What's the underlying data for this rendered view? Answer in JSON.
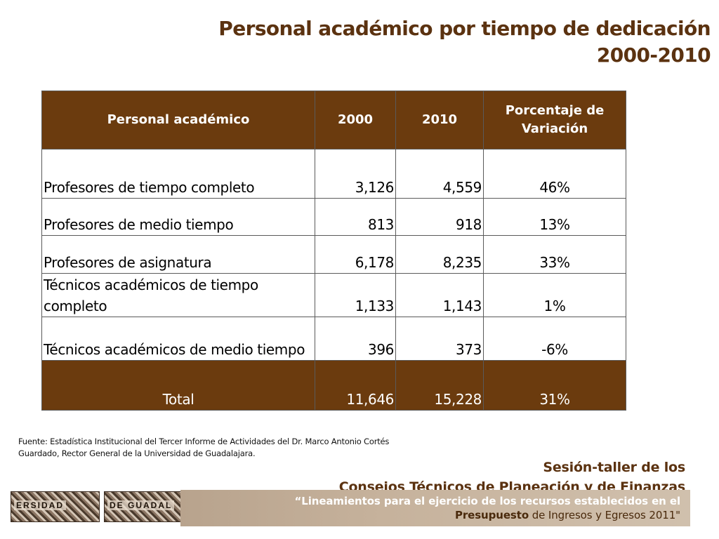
{
  "title": {
    "line1": "Personal académico por tiempo de dedicación",
    "line2": "2000-2010"
  },
  "table": {
    "headers": [
      "Personal académico",
      "2000",
      "2010",
      "Porcentaje de Variación"
    ],
    "rows": [
      [
        "Profesores de tiempo completo",
        "3,126",
        "4,559",
        "46%"
      ],
      [
        "Profesores de medio tiempo",
        "813",
        "918",
        "13%"
      ],
      [
        "Profesores de asignatura",
        "6,178",
        "8,235",
        "33%"
      ],
      [
        "Técnicos académicos de tiempo completo",
        "1,133",
        "1,143",
        "1%"
      ],
      [
        "Técnicos académicos de medio tiempo",
        "396",
        "373",
        "-6%"
      ]
    ],
    "total": [
      "Total",
      "11,646",
      "15,228",
      "31%"
    ]
  },
  "source": "Fuente: Estadística Institucional del Tercer Informe de Actividades del Dr. Marco Antonio Cortés Guardado, Rector General de la Universidad de Guadalajara.",
  "footer": {
    "session_line1": "Sesión-taller de los",
    "session_line2": "Consejos Técnicos de Planeación y de Finanzas",
    "banner_line1": "“Lineamientos para el ejercicio de los recursos establecidos en el",
    "banner_line2_bold": "Presupuesto",
    "banner_line2_rest": " de Ingresos y Egresos 2011\"",
    "seal_text_1": "ERSIDAD",
    "seal_text_2": "DE GUADAL"
  },
  "colors": {
    "header_bg": "#6b3b0e",
    "title_text": "#5b3210",
    "banner_bg": "#c6b29c"
  }
}
